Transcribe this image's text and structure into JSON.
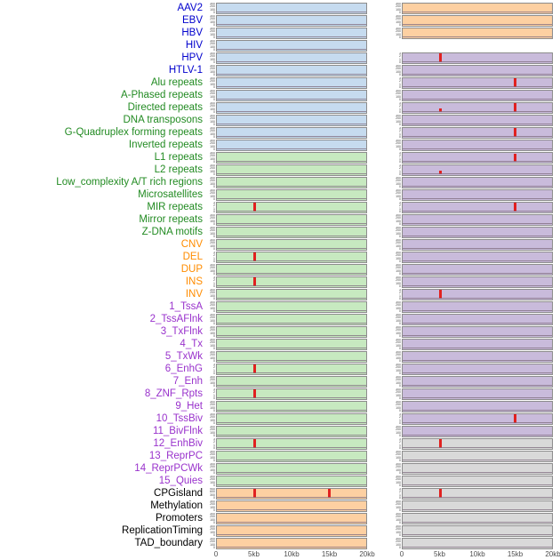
{
  "colors": {
    "groups": {
      "virus": "#0000cd",
      "repeat": "#228b22",
      "structural_variant": "#ff8c00",
      "chromatin_state": "#9932cc",
      "other": "#000000"
    },
    "panels": {
      "blue": "#c6dbef",
      "green": "#c7e9c0",
      "orange": "#fdd0a2",
      "purple": "#c9bbdb",
      "gray": "#d9d9d9"
    },
    "spike": "#e12120",
    "axis_text": "#4d4d4d"
  },
  "chart_data": {
    "type": "area",
    "description": "Small-multiples density tracks: 44 genomic feature rows by 2 sample columns, x from 0 to 20kb; red peaks mark feature enrichment (mostly at 5kb and 15kb).",
    "x_ticks": [
      "0",
      "5kb",
      "10kb",
      "15kb",
      "20kb"
    ],
    "x_range_kb": [
      0,
      20
    ],
    "columns": 2,
    "tick_sets": {
      "std": [
        "300",
        "200",
        "100",
        "0"
      ],
      "count": [
        "3",
        "2",
        "1",
        "0"
      ],
      "cpg": [
        "900",
        "600",
        "300",
        "0"
      ],
      "none": []
    },
    "rows": [
      {
        "label": "AAV2",
        "group": "virus",
        "left": {
          "bg": "blue",
          "ticks": "std",
          "peaks": []
        },
        "right": {
          "bg": "orange",
          "ticks": "std",
          "peaks": []
        }
      },
      {
        "label": "EBV",
        "group": "virus",
        "left": {
          "bg": "blue",
          "ticks": "std",
          "peaks": []
        },
        "right": {
          "bg": "orange",
          "ticks": "std",
          "peaks": []
        }
      },
      {
        "label": "HBV",
        "group": "virus",
        "left": {
          "bg": "blue",
          "ticks": "std",
          "peaks": []
        },
        "right": {
          "bg": "orange",
          "ticks": "std",
          "peaks": []
        }
      },
      {
        "label": "HIV",
        "group": "virus",
        "left": {
          "bg": "blue",
          "ticks": "std",
          "peaks": []
        },
        "right": {
          "bg": "none",
          "ticks": "none",
          "peaks": []
        }
      },
      {
        "label": "HPV",
        "group": "virus",
        "left": {
          "bg": "blue",
          "ticks": "std",
          "peaks": []
        },
        "right": {
          "bg": "purple",
          "ticks": "count",
          "peaks": [
            {
              "x_kb": 5,
              "h": 0.9
            }
          ]
        }
      },
      {
        "label": "HTLV-1",
        "group": "virus",
        "left": {
          "bg": "blue",
          "ticks": "std",
          "peaks": []
        },
        "right": {
          "bg": "purple",
          "ticks": "std",
          "peaks": []
        }
      },
      {
        "label": "Alu repeats",
        "group": "repeat",
        "left": {
          "bg": "blue",
          "ticks": "std",
          "peaks": []
        },
        "right": {
          "bg": "purple",
          "ticks": "count",
          "peaks": [
            {
              "x_kb": 15,
              "h": 0.85
            }
          ]
        }
      },
      {
        "label": "A-Phased repeats",
        "group": "repeat",
        "left": {
          "bg": "blue",
          "ticks": "std",
          "peaks": []
        },
        "right": {
          "bg": "purple",
          "ticks": "std",
          "peaks": []
        }
      },
      {
        "label": "Directed repeats",
        "group": "repeat",
        "left": {
          "bg": "blue",
          "ticks": "std",
          "peaks": []
        },
        "right": {
          "bg": "purple",
          "ticks": "count",
          "peaks": [
            {
              "x_kb": 5,
              "h": 0.35
            },
            {
              "x_kb": 15,
              "h": 0.85
            }
          ]
        }
      },
      {
        "label": "DNA transposons",
        "group": "repeat",
        "left": {
          "bg": "blue",
          "ticks": "std",
          "peaks": []
        },
        "right": {
          "bg": "purple",
          "ticks": "std",
          "peaks": []
        }
      },
      {
        "label": "G-Quadruplex forming repeats",
        "group": "repeat",
        "left": {
          "bg": "blue",
          "ticks": "std",
          "peaks": []
        },
        "right": {
          "bg": "purple",
          "ticks": "count",
          "peaks": [
            {
              "x_kb": 15,
              "h": 0.85
            }
          ]
        }
      },
      {
        "label": "Inverted repeats",
        "group": "repeat",
        "left": {
          "bg": "blue",
          "ticks": "std",
          "peaks": []
        },
        "right": {
          "bg": "purple",
          "ticks": "std",
          "peaks": []
        }
      },
      {
        "label": "L1 repeats",
        "group": "repeat",
        "left": {
          "bg": "green",
          "ticks": "std",
          "peaks": []
        },
        "right": {
          "bg": "purple",
          "ticks": "count",
          "peaks": [
            {
              "x_kb": 15,
              "h": 0.8
            }
          ]
        }
      },
      {
        "label": "L2 repeats",
        "group": "repeat",
        "left": {
          "bg": "green",
          "ticks": "std",
          "peaks": []
        },
        "right": {
          "bg": "purple",
          "ticks": "count",
          "peaks": [
            {
              "x_kb": 5,
              "h": 0.3
            }
          ]
        }
      },
      {
        "label": "Low_complexity A/T rich regions",
        "group": "repeat",
        "left": {
          "bg": "green",
          "ticks": "std",
          "peaks": []
        },
        "right": {
          "bg": "purple",
          "ticks": "std",
          "peaks": []
        }
      },
      {
        "label": "Microsatellites",
        "group": "repeat",
        "left": {
          "bg": "green",
          "ticks": "std",
          "peaks": []
        },
        "right": {
          "bg": "purple",
          "ticks": "std",
          "peaks": []
        }
      },
      {
        "label": "MIR repeats",
        "group": "repeat",
        "left": {
          "bg": "green",
          "ticks": "count",
          "peaks": [
            {
              "x_kb": 5,
              "h": 0.85
            }
          ]
        },
        "right": {
          "bg": "purple",
          "ticks": "count",
          "peaks": [
            {
              "x_kb": 15,
              "h": 0.85
            }
          ]
        }
      },
      {
        "label": "Mirror repeats",
        "group": "repeat",
        "left": {
          "bg": "green",
          "ticks": "std",
          "peaks": []
        },
        "right": {
          "bg": "purple",
          "ticks": "std",
          "peaks": []
        }
      },
      {
        "label": "Z-DNA motifs",
        "group": "repeat",
        "left": {
          "bg": "green",
          "ticks": "std",
          "peaks": []
        },
        "right": {
          "bg": "purple",
          "ticks": "std",
          "peaks": []
        }
      },
      {
        "label": "CNV",
        "group": "structural_variant",
        "left": {
          "bg": "green",
          "ticks": "std",
          "peaks": []
        },
        "right": {
          "bg": "purple",
          "ticks": "std",
          "peaks": []
        }
      },
      {
        "label": "DEL",
        "group": "structural_variant",
        "left": {
          "bg": "green",
          "ticks": "count",
          "peaks": [
            {
              "x_kb": 5,
              "h": 0.85
            }
          ]
        },
        "right": {
          "bg": "purple",
          "ticks": "std",
          "peaks": []
        }
      },
      {
        "label": "DUP",
        "group": "structural_variant",
        "left": {
          "bg": "green",
          "ticks": "std",
          "peaks": []
        },
        "right": {
          "bg": "purple",
          "ticks": "std",
          "peaks": []
        }
      },
      {
        "label": "INS",
        "group": "structural_variant",
        "left": {
          "bg": "green",
          "ticks": "count",
          "peaks": [
            {
              "x_kb": 5,
              "h": 0.85
            }
          ]
        },
        "right": {
          "bg": "purple",
          "ticks": "std",
          "peaks": []
        }
      },
      {
        "label": "INV",
        "group": "structural_variant",
        "left": {
          "bg": "green",
          "ticks": "std",
          "peaks": []
        },
        "right": {
          "bg": "purple",
          "ticks": "count",
          "peaks": [
            {
              "x_kb": 5,
              "h": 0.9
            }
          ]
        }
      },
      {
        "label": "1_TssA",
        "group": "chromatin_state",
        "left": {
          "bg": "green",
          "ticks": "std",
          "peaks": []
        },
        "right": {
          "bg": "purple",
          "ticks": "std",
          "peaks": []
        }
      },
      {
        "label": "2_TssAFlnk",
        "group": "chromatin_state",
        "left": {
          "bg": "green",
          "ticks": "std",
          "peaks": []
        },
        "right": {
          "bg": "purple",
          "ticks": "std",
          "peaks": []
        }
      },
      {
        "label": "3_TxFlnk",
        "group": "chromatin_state",
        "left": {
          "bg": "green",
          "ticks": "std",
          "peaks": []
        },
        "right": {
          "bg": "purple",
          "ticks": "std",
          "peaks": []
        }
      },
      {
        "label": "4_Tx",
        "group": "chromatin_state",
        "left": {
          "bg": "green",
          "ticks": "std",
          "peaks": []
        },
        "right": {
          "bg": "purple",
          "ticks": "std",
          "peaks": []
        }
      },
      {
        "label": "5_TxWk",
        "group": "chromatin_state",
        "left": {
          "bg": "green",
          "ticks": "std",
          "peaks": []
        },
        "right": {
          "bg": "purple",
          "ticks": "std",
          "peaks": []
        }
      },
      {
        "label": "6_EnhG",
        "group": "chromatin_state",
        "left": {
          "bg": "green",
          "ticks": "count",
          "peaks": [
            {
              "x_kb": 5,
              "h": 0.85
            }
          ]
        },
        "right": {
          "bg": "purple",
          "ticks": "std",
          "peaks": []
        }
      },
      {
        "label": "7_Enh",
        "group": "chromatin_state",
        "left": {
          "bg": "green",
          "ticks": "std",
          "peaks": []
        },
        "right": {
          "bg": "purple",
          "ticks": "std",
          "peaks": []
        }
      },
      {
        "label": "8_ZNF_Rpts",
        "group": "chromatin_state",
        "left": {
          "bg": "green",
          "ticks": "count",
          "peaks": [
            {
              "x_kb": 5,
              "h": 0.85
            }
          ]
        },
        "right": {
          "bg": "purple",
          "ticks": "std",
          "peaks": []
        }
      },
      {
        "label": "9_Het",
        "group": "chromatin_state",
        "left": {
          "bg": "green",
          "ticks": "std",
          "peaks": []
        },
        "right": {
          "bg": "purple",
          "ticks": "std",
          "peaks": []
        }
      },
      {
        "label": "10_TssBiv",
        "group": "chromatin_state",
        "left": {
          "bg": "green",
          "ticks": "std",
          "peaks": []
        },
        "right": {
          "bg": "purple",
          "ticks": "count",
          "peaks": [
            {
              "x_kb": 15,
              "h": 0.85
            }
          ]
        }
      },
      {
        "label": "11_BivFlnk",
        "group": "chromatin_state",
        "left": {
          "bg": "green",
          "ticks": "std",
          "peaks": []
        },
        "right": {
          "bg": "purple",
          "ticks": "std",
          "peaks": []
        }
      },
      {
        "label": "12_EnhBiv",
        "group": "chromatin_state",
        "left": {
          "bg": "green",
          "ticks": "count",
          "peaks": [
            {
              "x_kb": 5,
              "h": 0.85
            }
          ]
        },
        "right": {
          "bg": "gray",
          "ticks": "count",
          "peaks": [
            {
              "x_kb": 5,
              "h": 0.85
            }
          ]
        }
      },
      {
        "label": "13_ReprPC",
        "group": "chromatin_state",
        "left": {
          "bg": "green",
          "ticks": "std",
          "peaks": []
        },
        "right": {
          "bg": "gray",
          "ticks": "std",
          "peaks": []
        }
      },
      {
        "label": "14_ReprPCWk",
        "group": "chromatin_state",
        "left": {
          "bg": "green",
          "ticks": "std",
          "peaks": []
        },
        "right": {
          "bg": "gray",
          "ticks": "std",
          "peaks": []
        }
      },
      {
        "label": "15_Quies",
        "group": "chromatin_state",
        "left": {
          "bg": "green",
          "ticks": "std",
          "peaks": []
        },
        "right": {
          "bg": "gray",
          "ticks": "std",
          "peaks": []
        }
      },
      {
        "label": "CPGisland",
        "group": "other",
        "left": {
          "bg": "orange",
          "ticks": "cpg",
          "peaks": [
            {
              "x_kb": 5,
              "h": 0.9
            },
            {
              "x_kb": 15,
              "h": 0.85
            }
          ]
        },
        "right": {
          "bg": "gray",
          "ticks": "count",
          "peaks": [
            {
              "x_kb": 5,
              "h": 0.85
            }
          ]
        }
      },
      {
        "label": "Methylation",
        "group": "other",
        "left": {
          "bg": "orange",
          "ticks": "std",
          "peaks": []
        },
        "right": {
          "bg": "gray",
          "ticks": "std",
          "peaks": []
        }
      },
      {
        "label": "Promoters",
        "group": "other",
        "left": {
          "bg": "orange",
          "ticks": "std",
          "peaks": []
        },
        "right": {
          "bg": "gray",
          "ticks": "std",
          "peaks": []
        }
      },
      {
        "label": "ReplicationTiming",
        "group": "other",
        "left": {
          "bg": "orange",
          "ticks": "std",
          "peaks": []
        },
        "right": {
          "bg": "gray",
          "ticks": "std",
          "peaks": []
        }
      },
      {
        "label": "TAD_boundary",
        "group": "other",
        "left": {
          "bg": "orange",
          "ticks": "std",
          "peaks": []
        },
        "right": {
          "bg": "gray",
          "ticks": "std",
          "peaks": []
        }
      }
    ]
  }
}
